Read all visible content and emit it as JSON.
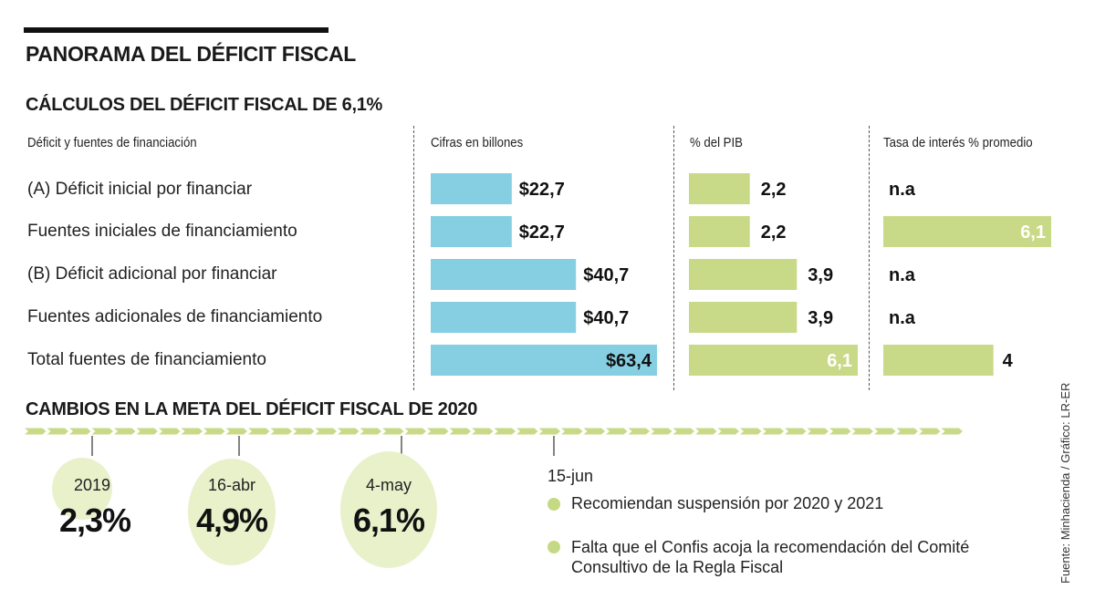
{
  "title": "PANORAMA DEL DÉFICIT FISCAL",
  "section1_title": "CÁLCULOS DEL DÉFICIT FISCAL DE 6,1%",
  "section2_title": "CAMBIOS EN LA META DEL DÉFICIT FISCAL DE 2020",
  "source": "Fuente: Minhacienda / Gráfico: LR-ER",
  "colors": {
    "blue_bar": "#86cfe3",
    "green_bar": "#c8da87",
    "bubble": "#e9f1cb",
    "arrow": "#c8da87"
  },
  "chart_data": [
    {
      "type": "table",
      "title": "CÁLCULOS DEL DÉFICIT FISCAL DE 6,1%",
      "columns": [
        "Déficit y fuentes de financiación",
        "Cifras en billones",
        "% del PIB",
        "Tasa de interés % promedio"
      ],
      "rows": [
        {
          "label": "(A) Déficit inicial por financiar",
          "billones": 22.7,
          "billones_label": "$22,7",
          "pib": 2.2,
          "pib_label": "2,2",
          "tasa": null,
          "tasa_label": "n.a"
        },
        {
          "label": "Fuentes iniciales de financiamiento",
          "billones": 22.7,
          "billones_label": "$22,7",
          "pib": 2.2,
          "pib_label": "2,2",
          "tasa": 6.1,
          "tasa_label": "6,1"
        },
        {
          "label": "(B) Déficit adicional por financiar",
          "billones": 40.7,
          "billones_label": "$40,7",
          "pib": 3.9,
          "pib_label": "3,9",
          "tasa": null,
          "tasa_label": "n.a"
        },
        {
          "label": "Fuentes adicionales de financiamiento",
          "billones": 40.7,
          "billones_label": "$40,7",
          "pib": 3.9,
          "pib_label": "3,9",
          "tasa": null,
          "tasa_label": "n.a"
        },
        {
          "label": "Total fuentes de financiamiento",
          "billones": 63.4,
          "billones_label": "$63,4",
          "pib": 6.1,
          "pib_label": "6,1",
          "tasa": 4,
          "tasa_label": "4"
        }
      ]
    },
    {
      "type": "timeline",
      "title": "CAMBIOS EN LA META DEL DÉFICIT FISCAL DE 2020",
      "events": [
        {
          "date": "2019",
          "value": 2.3,
          "value_label": "2,3%"
        },
        {
          "date": "16-abr",
          "value": 4.9,
          "value_label": "4,9%"
        },
        {
          "date": "4-may",
          "value": 6.1,
          "value_label": "6,1%"
        }
      ],
      "final_event": {
        "date": "15-jun",
        "notes": [
          "Recomiendan suspensión por 2020 y 2021",
          "Falta que el Confis acoja la recomendación del Comité Consultivo de la Regla Fiscal"
        ]
      }
    }
  ]
}
